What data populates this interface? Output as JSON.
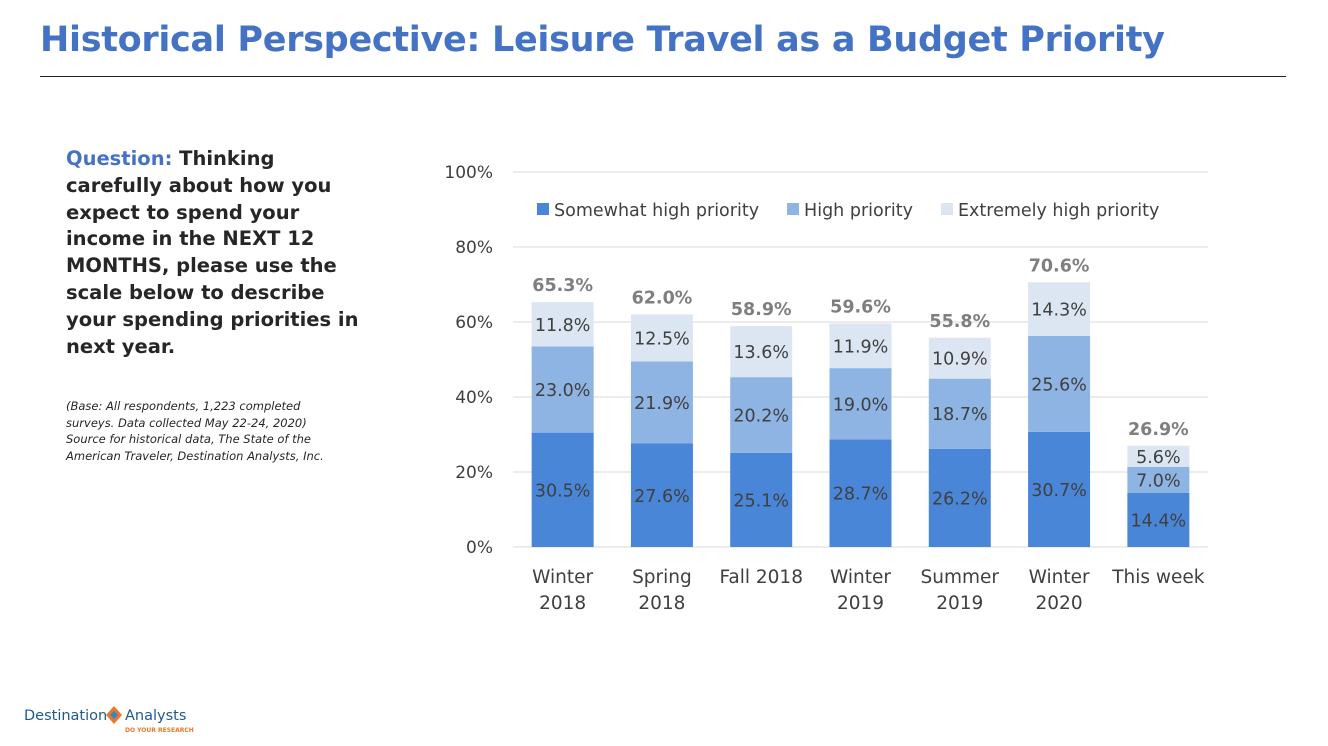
{
  "page": {
    "title": "Historical Perspective: Leisure Travel as a Budget Priority",
    "question_label": "Question:",
    "question_text": " Thinking carefully about how you expect to spend your income in the NEXT 12 MONTHS, please use the scale below to describe your spending priorities in next year.",
    "base_note": "(Base: All respondents, 1,223 completed surveys. Data collected May 22-24, 2020) Source for historical data, The State of the American Traveler, Destination Analysts, Inc.",
    "logo_name_part1": "Destination",
    "logo_name_part2": "Analysts",
    "logo_tagline": "DO YOUR RESEARCH"
  },
  "chart_data": {
    "type": "bar",
    "stacked": true,
    "categories": [
      "Winter\n2018",
      "Spring\n2018",
      "Fall 2018",
      "Winter\n2019",
      "Summer\n2019",
      "Winter\n2020",
      "This week"
    ],
    "series": [
      {
        "name": "Somewhat high priority",
        "color": "#4A86D8",
        "values": [
          30.5,
          27.6,
          25.1,
          28.7,
          26.2,
          30.7,
          14.4
        ]
      },
      {
        "name": "High priority",
        "color": "#8EB4E3",
        "values": [
          23.0,
          21.9,
          20.2,
          19.0,
          18.7,
          25.6,
          7.0
        ]
      },
      {
        "name": "Extremely high priority",
        "color": "#DCE6F2",
        "values": [
          11.8,
          12.5,
          13.6,
          11.9,
          10.9,
          14.3,
          5.6
        ]
      }
    ],
    "totals": [
      65.3,
      62.0,
      58.9,
      59.6,
      55.8,
      70.6,
      26.9
    ],
    "value_suffix": "%",
    "ylim": [
      0,
      100
    ],
    "yticks": [
      0,
      20,
      40,
      60,
      80,
      100
    ],
    "ytick_labels": [
      "0%",
      "20%",
      "40%",
      "60%",
      "80%",
      "100%"
    ],
    "grid": true,
    "legend_position": "top",
    "colors": {
      "gridline": "#D9D9D9",
      "label": "#404040",
      "total_label": "#7F7F7F"
    }
  }
}
